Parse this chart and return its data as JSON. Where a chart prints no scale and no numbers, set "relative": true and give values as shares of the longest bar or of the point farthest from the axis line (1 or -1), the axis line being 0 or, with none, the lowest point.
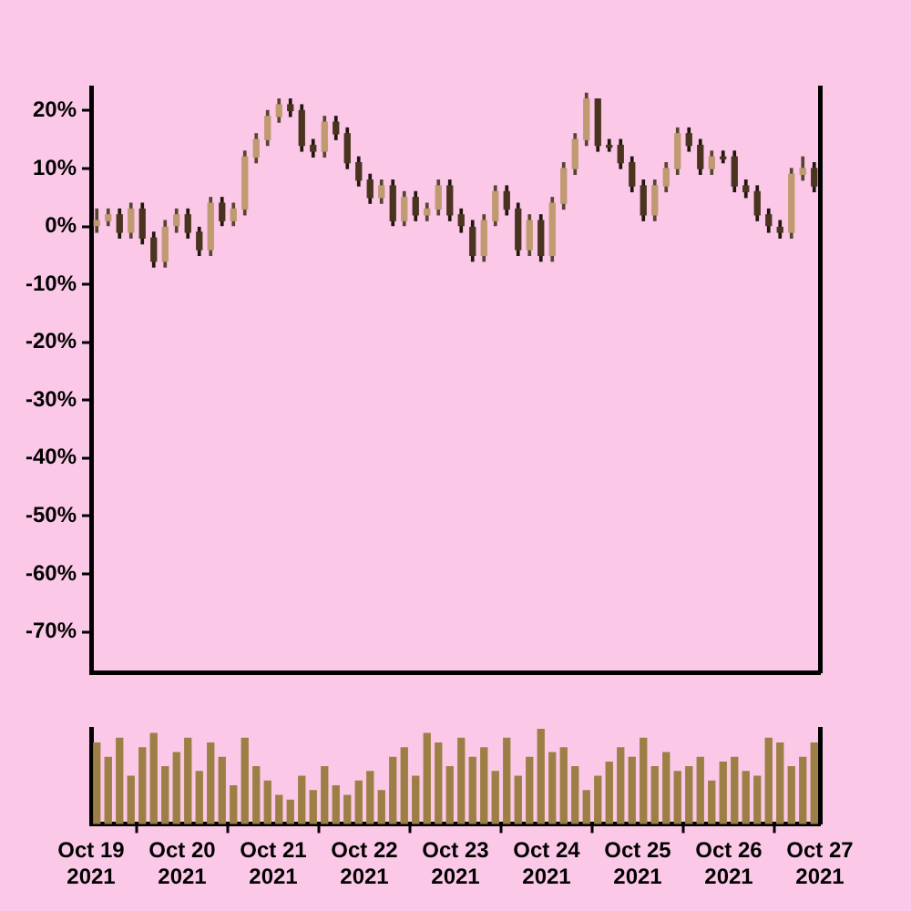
{
  "chart_data": [
    {
      "type": "candlestick",
      "x": [
        "2021-10-19T01:30",
        "2021-10-19T04:30",
        "2021-10-19T07:30",
        "2021-10-19T10:30",
        "2021-10-19T13:30",
        "2021-10-19T16:30",
        "2021-10-19T19:30",
        "2021-10-19T22:30",
        "2021-10-20T01:30",
        "2021-10-20T04:30",
        "2021-10-20T07:30",
        "2021-10-20T10:30",
        "2021-10-20T13:30",
        "2021-10-20T16:30",
        "2021-10-20T19:30",
        "2021-10-20T22:30",
        "2021-10-21T01:30",
        "2021-10-21T04:30",
        "2021-10-21T07:30",
        "2021-10-21T10:30",
        "2021-10-21T13:30",
        "2021-10-21T16:30",
        "2021-10-21T19:30",
        "2021-10-21T22:30",
        "2021-10-22T01:30",
        "2021-10-22T04:30",
        "2021-10-22T07:30",
        "2021-10-22T10:30",
        "2021-10-22T13:30",
        "2021-10-22T16:30",
        "2021-10-22T19:30",
        "2021-10-22T22:30",
        "2021-10-23T01:30",
        "2021-10-23T04:30",
        "2021-10-23T07:30",
        "2021-10-23T10:30",
        "2021-10-23T13:30",
        "2021-10-23T16:30",
        "2021-10-23T19:30",
        "2021-10-23T22:30",
        "2021-10-24T01:30",
        "2021-10-24T04:30",
        "2021-10-24T07:30",
        "2021-10-24T10:30",
        "2021-10-24T13:30",
        "2021-10-24T16:30",
        "2021-10-24T19:30",
        "2021-10-24T22:30",
        "2021-10-25T01:30",
        "2021-10-25T04:30",
        "2021-10-25T07:30",
        "2021-10-25T10:30",
        "2021-10-25T13:30",
        "2021-10-25T16:30",
        "2021-10-25T19:30",
        "2021-10-25T22:30",
        "2021-10-26T01:30",
        "2021-10-26T04:30",
        "2021-10-26T07:30",
        "2021-10-26T10:30",
        "2021-10-26T13:30",
        "2021-10-26T16:30",
        "2021-10-26T19:30",
        "2021-10-26T22:30"
      ],
      "ohlc": [
        [
          0,
          3,
          -1,
          1
        ],
        [
          1,
          3,
          0,
          2
        ],
        [
          2,
          3,
          -2,
          -1
        ],
        [
          -1,
          4,
          -2,
          3
        ],
        [
          3,
          4,
          -3,
          -2
        ],
        [
          -2,
          -1,
          -7,
          -6
        ],
        [
          -6,
          1,
          -7,
          0
        ],
        [
          0,
          3,
          -1,
          2
        ],
        [
          2,
          3,
          -2,
          -1
        ],
        [
          -1,
          0,
          -5,
          -4
        ],
        [
          -4,
          5,
          -5,
          4
        ],
        [
          4,
          5,
          0,
          1
        ],
        [
          1,
          4,
          0,
          3
        ],
        [
          3,
          13,
          2,
          12
        ],
        [
          12,
          16,
          11,
          15
        ],
        [
          15,
          20,
          14,
          19
        ],
        [
          19,
          22,
          18,
          21
        ],
        [
          21,
          22,
          19,
          20
        ],
        [
          20,
          21,
          13,
          14
        ],
        [
          14,
          15,
          12,
          13
        ],
        [
          13,
          19,
          12,
          18
        ],
        [
          18,
          19,
          15,
          16
        ],
        [
          16,
          17,
          10,
          11
        ],
        [
          11,
          12,
          7,
          8
        ],
        [
          8,
          9,
          4,
          5
        ],
        [
          5,
          8,
          4,
          7
        ],
        [
          7,
          8,
          0,
          1
        ],
        [
          1,
          6,
          0,
          5
        ],
        [
          5,
          6,
          1,
          2
        ],
        [
          2,
          4,
          1,
          3
        ],
        [
          3,
          8,
          2,
          7
        ],
        [
          7,
          8,
          1,
          2
        ],
        [
          2,
          3,
          -1,
          0
        ],
        [
          0,
          1,
          -6,
          -5
        ],
        [
          -5,
          2,
          -6,
          1
        ],
        [
          1,
          7,
          0,
          6
        ],
        [
          6,
          7,
          2,
          3
        ],
        [
          3,
          4,
          -5,
          -4
        ],
        [
          -4,
          2,
          -5,
          1
        ],
        [
          1,
          2,
          -6,
          -5
        ],
        [
          -5,
          5,
          -6,
          4
        ],
        [
          4,
          11,
          3,
          10
        ],
        [
          10,
          16,
          9,
          15
        ],
        [
          15,
          23,
          14,
          22
        ],
        [
          22,
          22,
          13,
          14
        ],
        [
          14,
          15,
          13,
          14
        ],
        [
          14,
          15,
          10,
          11
        ],
        [
          11,
          12,
          6,
          7
        ],
        [
          7,
          8,
          1,
          2
        ],
        [
          2,
          8,
          1,
          7
        ],
        [
          7,
          11,
          6,
          10
        ],
        [
          10,
          17,
          9,
          16
        ],
        [
          16,
          17,
          13,
          14
        ],
        [
          14,
          15,
          9,
          10
        ],
        [
          10,
          13,
          9,
          12
        ],
        [
          12,
          13,
          11,
          12
        ],
        [
          12,
          13,
          6,
          7
        ],
        [
          7,
          8,
          5,
          6
        ],
        [
          6,
          7,
          1,
          2
        ],
        [
          2,
          3,
          -1,
          0
        ],
        [
          0,
          1,
          -2,
          -1
        ],
        [
          -1,
          10,
          -2,
          9
        ],
        [
          9,
          12,
          8,
          10
        ],
        [
          10,
          11,
          6,
          7
        ]
      ],
      "colors": [
        "#c09a70",
        "#c09a70",
        "#4a3420",
        "#c09a70",
        "#4a3420",
        "#4a3420",
        "#c09a70",
        "#c09a70",
        "#4a3420",
        "#4a3420",
        "#c09a70",
        "#4a3420",
        "#c09a70",
        "#c09a70",
        "#c09a70",
        "#c09a70",
        "#c09a70",
        "#4a3420",
        "#4a3420",
        "#4a3420",
        "#c09a70",
        "#4a3420",
        "#4a3420",
        "#4a3420",
        "#4a3420",
        "#c09a70",
        "#4a3420",
        "#c09a70",
        "#4a3420",
        "#c09a70",
        "#c09a70",
        "#4a3420",
        "#4a3420",
        "#4a3420",
        "#c09a70",
        "#c09a70",
        "#4a3420",
        "#4a3420",
        "#c09a70",
        "#4a3420",
        "#c09a70",
        "#c09a70",
        "#c09a70",
        "#c09a70",
        "#4a3420",
        "#4a3420",
        "#4a3420",
        "#4a3420",
        "#4a3420",
        "#c09a70",
        "#c09a70",
        "#c09a70",
        "#4a3420",
        "#4a3420",
        "#c09a70",
        "#4a3420",
        "#4a3420",
        "#4a3420",
        "#4a3420",
        "#4a3420",
        "#4a3420",
        "#c09a70",
        "#c09a70",
        "#4a3420"
      ],
      "xlim": [
        "2021-10-19",
        "2021-10-27"
      ],
      "ylim": [
        -77,
        24
      ],
      "yticks": [
        {
          "value": 20,
          "label": "20%"
        },
        {
          "value": 10,
          "label": "10%"
        },
        {
          "value": 0,
          "label": "0%"
        },
        {
          "value": -10,
          "label": "-10%"
        },
        {
          "value": -20,
          "label": "-20%"
        },
        {
          "value": -30,
          "label": "-30%"
        },
        {
          "value": -40,
          "label": "-40%"
        },
        {
          "value": -50,
          "label": "-50%"
        },
        {
          "value": -60,
          "label": "-60%"
        },
        {
          "value": -70,
          "label": "-70%"
        }
      ],
      "tick_labels": "y",
      "grid": false,
      "legend": false
    },
    {
      "type": "bar",
      "relative": true,
      "color": "#9c7f45",
      "x": [
        "2021-10-19T01:30",
        "2021-10-19T04:30",
        "2021-10-19T07:30",
        "2021-10-19T10:30",
        "2021-10-19T13:30",
        "2021-10-19T16:30",
        "2021-10-19T19:30",
        "2021-10-19T22:30",
        "2021-10-20T01:30",
        "2021-10-20T04:30",
        "2021-10-20T07:30",
        "2021-10-20T10:30",
        "2021-10-20T13:30",
        "2021-10-20T16:30",
        "2021-10-20T19:30",
        "2021-10-20T22:30",
        "2021-10-21T01:30",
        "2021-10-21T04:30",
        "2021-10-21T07:30",
        "2021-10-21T10:30",
        "2021-10-21T13:30",
        "2021-10-21T16:30",
        "2021-10-21T19:30",
        "2021-10-21T22:30",
        "2021-10-22T01:30",
        "2021-10-22T04:30",
        "2021-10-22T07:30",
        "2021-10-22T10:30",
        "2021-10-22T13:30",
        "2021-10-22T16:30",
        "2021-10-22T19:30",
        "2021-10-22T22:30",
        "2021-10-23T01:30",
        "2021-10-23T04:30",
        "2021-10-23T07:30",
        "2021-10-23T10:30",
        "2021-10-23T13:30",
        "2021-10-23T16:30",
        "2021-10-23T19:30",
        "2021-10-23T22:30",
        "2021-10-24T01:30",
        "2021-10-24T04:30",
        "2021-10-24T07:30",
        "2021-10-24T10:30",
        "2021-10-24T13:30",
        "2021-10-24T16:30",
        "2021-10-24T19:30",
        "2021-10-24T22:30",
        "2021-10-25T01:30",
        "2021-10-25T04:30",
        "2021-10-25T07:30",
        "2021-10-25T10:30",
        "2021-10-25T13:30",
        "2021-10-25T16:30",
        "2021-10-25T19:30",
        "2021-10-25T22:30",
        "2021-10-26T01:30",
        "2021-10-26T04:30",
        "2021-10-26T07:30",
        "2021-10-26T10:30",
        "2021-10-26T13:30",
        "2021-10-26T16:30",
        "2021-10-26T19:30",
        "2021-10-26T22:30"
      ],
      "values": [
        0.85,
        0.7,
        0.9,
        0.5,
        0.8,
        0.95,
        0.6,
        0.75,
        0.9,
        0.55,
        0.85,
        0.7,
        0.4,
        0.9,
        0.6,
        0.45,
        0.3,
        0.25,
        0.5,
        0.35,
        0.6,
        0.4,
        0.3,
        0.45,
        0.55,
        0.35,
        0.7,
        0.8,
        0.5,
        0.95,
        0.85,
        0.6,
        0.9,
        0.7,
        0.8,
        0.55,
        0.9,
        0.5,
        0.7,
        1,
        0.75,
        0.8,
        0.6,
        0.35,
        0.5,
        0.65,
        0.8,
        0.7,
        0.9,
        0.6,
        0.75,
        0.55,
        0.6,
        0.7,
        0.45,
        0.65,
        0.7,
        0.55,
        0.5,
        0.9,
        0.85,
        0.6,
        0.7,
        0.85
      ],
      "xlim": [
        "2021-10-19",
        "2021-10-27"
      ],
      "xticks": [
        {
          "value": "2021-10-19",
          "label": "Oct 19\n2021"
        },
        {
          "value": "2021-10-20",
          "label": "Oct 20\n2021"
        },
        {
          "value": "2021-10-21",
          "label": "Oct 21\n2021"
        },
        {
          "value": "2021-10-22",
          "label": "Oct 22\n2021"
        },
        {
          "value": "2021-10-23",
          "label": "Oct 23\n2021"
        },
        {
          "value": "2021-10-24",
          "label": "Oct 24\n2021"
        },
        {
          "value": "2021-10-25",
          "label": "Oct 25\n2021"
        },
        {
          "value": "2021-10-26",
          "label": "Oct 26\n2021"
        },
        {
          "value": "2021-10-27",
          "label": "Oct 27\n2021"
        }
      ],
      "tick_labels": "x",
      "grid": false,
      "legend": false
    }
  ]
}
